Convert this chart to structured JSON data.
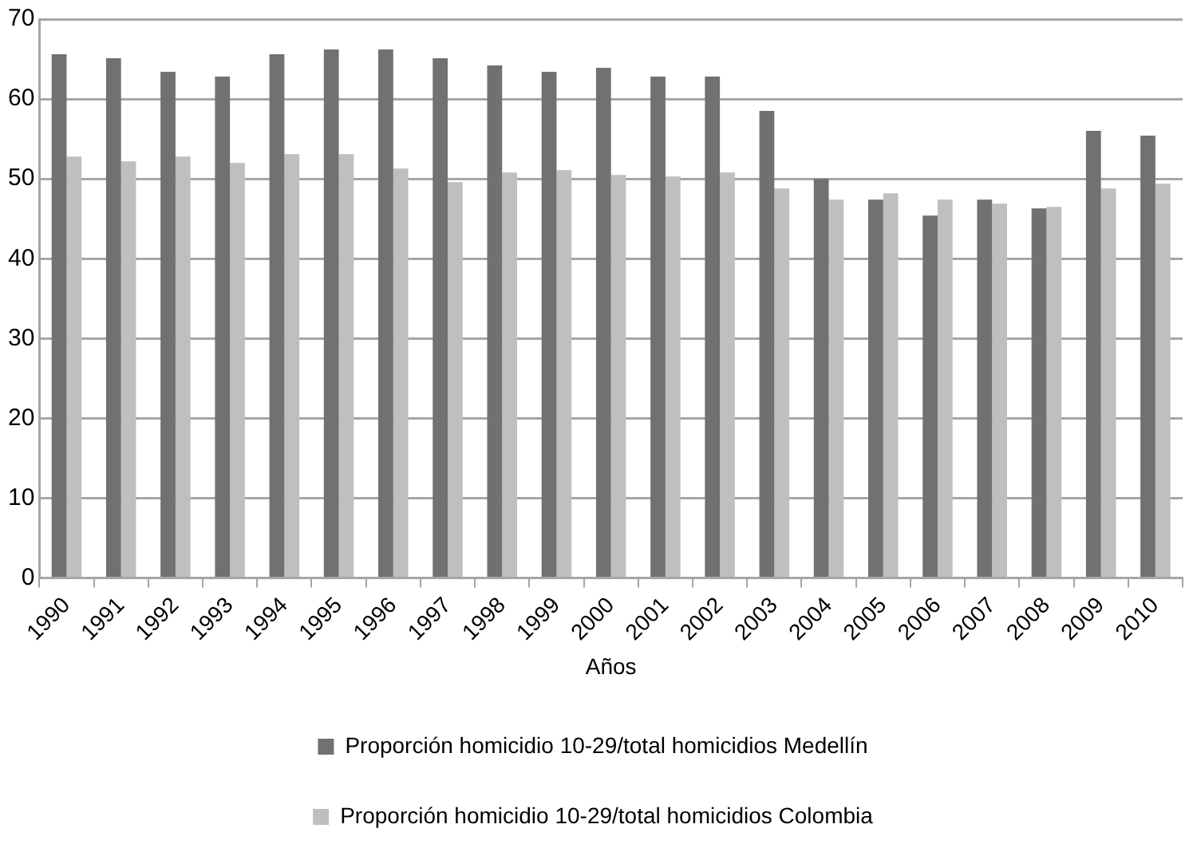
{
  "chart_data": {
    "type": "bar",
    "xlabel": "Años",
    "categories": [
      "1990",
      "1991",
      "1992",
      "1993",
      "1994",
      "1995",
      "1996",
      "1997",
      "1998",
      "1999",
      "2000",
      "2001",
      "2002",
      "2003",
      "2004",
      "2005",
      "2006",
      "2007",
      "2008",
      "2009",
      "2010"
    ],
    "series": [
      {
        "name": "Proporción homicidio 10-29/total homicidios Medellín",
        "color": "#717171",
        "values": [
          65.6,
          65.1,
          63.4,
          62.8,
          65.6,
          66.2,
          66.2,
          65.1,
          64.2,
          63.4,
          63.9,
          62.8,
          62.8,
          58.5,
          50,
          47.4,
          45.4,
          47.4,
          46.3,
          56,
          55.4
        ]
      },
      {
        "name": "Proporción homicidio 10-29/total homicidios Colombia",
        "color": "#bfbfbf",
        "values": [
          52.8,
          52.2,
          52.8,
          52,
          53.1,
          53.1,
          51.3,
          49.6,
          50.8,
          51.1,
          50.5,
          50.3,
          50.8,
          48.8,
          47.4,
          48.2,
          47.4,
          46.9,
          46.5,
          48.8,
          49.4
        ]
      }
    ],
    "ylim": [
      0,
      70
    ],
    "yticks": [
      0,
      10,
      20,
      30,
      40,
      50,
      60,
      70
    ],
    "grid": "y",
    "legend": "bottom"
  }
}
